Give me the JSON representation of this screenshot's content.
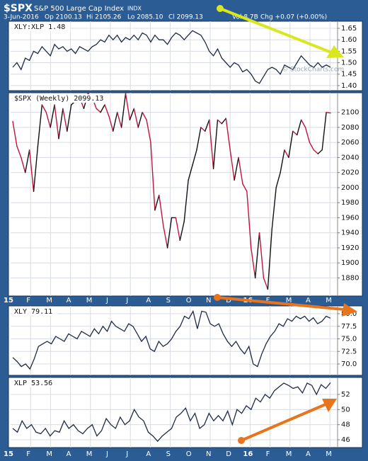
{
  "header": {
    "symbol": "$SPX",
    "name": "S&P 500 Large Cap Index",
    "exchange": "INDX",
    "date": "3-Jun-2016",
    "open": "Op 2100.13",
    "high": "Hi 2105.26",
    "low": "Lo 2085.10",
    "close": "Cl 2099.13",
    "volume": "Vol 8.7B",
    "change": "Chg +0.07 (+0.00%)"
  },
  "watermark": "© StockCharts.com",
  "x_labels": [
    "15",
    "F",
    "M",
    "A",
    "M",
    "J",
    "J",
    "A",
    "S",
    "O",
    "N",
    "D",
    "16",
    "F",
    "M",
    "A",
    "M"
  ],
  "chart_data": [
    {
      "type": "line",
      "title": "XLY:XLP 1.48",
      "color": "#1f2a44",
      "grid": true,
      "ylim": [
        1.378,
        1.681
      ],
      "yticks": [
        {
          "value": 1.4,
          "label": "1.40"
        },
        {
          "value": 1.45,
          "label": "1.45"
        },
        {
          "value": 1.5,
          "label": "1.50"
        },
        {
          "value": 1.55,
          "label": "1.55"
        },
        {
          "value": 1.6,
          "label": "1.60"
        },
        {
          "value": 1.65,
          "label": "1.65"
        }
      ],
      "values": [
        1.48,
        1.5,
        1.47,
        1.52,
        1.51,
        1.55,
        1.54,
        1.57,
        1.55,
        1.53,
        1.58,
        1.56,
        1.57,
        1.55,
        1.56,
        1.54,
        1.57,
        1.56,
        1.55,
        1.57,
        1.58,
        1.6,
        1.59,
        1.62,
        1.6,
        1.62,
        1.59,
        1.61,
        1.6,
        1.62,
        1.6,
        1.63,
        1.62,
        1.59,
        1.62,
        1.6,
        1.6,
        1.58,
        1.61,
        1.63,
        1.62,
        1.6,
        1.62,
        1.64,
        1.63,
        1.62,
        1.59,
        1.55,
        1.53,
        1.56,
        1.52,
        1.5,
        1.48,
        1.5,
        1.49,
        1.46,
        1.47,
        1.45,
        1.42,
        1.41,
        1.44,
        1.47,
        1.48,
        1.47,
        1.45,
        1.49,
        1.48,
        1.47,
        1.5,
        1.53,
        1.51,
        1.49,
        1.48,
        1.5,
        1.48,
        1.49,
        1.48
      ]
    },
    {
      "type": "updown-line",
      "title": "$SPX (Weekly) 2099.13",
      "color": "#111111",
      "down_color": "#c0143c",
      "grid": true,
      "ylim": [
        1856,
        2126
      ],
      "yticks": [
        1880,
        1900,
        1920,
        1940,
        1960,
        1980,
        2000,
        2020,
        2040,
        2060,
        2080,
        2100
      ],
      "values": [
        2088,
        2055,
        2040,
        2020,
        2050,
        1995,
        2055,
        2110,
        2100,
        2080,
        2110,
        2065,
        2105,
        2075,
        2110,
        2115,
        2120,
        2105,
        2125,
        2120,
        2105,
        2100,
        2110,
        2095,
        2075,
        2100,
        2080,
        2125,
        2090,
        2105,
        2080,
        2100,
        2090,
        2060,
        1970,
        1990,
        1950,
        1920,
        1960,
        1960,
        1930,
        1955,
        2010,
        2030,
        2050,
        2080,
        2075,
        2090,
        2025,
        2090,
        2085,
        2092,
        2050,
        2010,
        2040,
        2005,
        1995,
        1920,
        1880,
        1940,
        1880,
        1865,
        1945,
        2000,
        2020,
        2050,
        2040,
        2075,
        2070,
        2090,
        2080,
        2060,
        2050,
        2045,
        2050,
        2100,
        2099.13
      ]
    },
    {
      "type": "line",
      "title": "XLY 79.11",
      "color": "#1f2a44",
      "grid": true,
      "ylim": [
        67.75,
        81.55
      ],
      "yticks": [
        {
          "value": 70,
          "label": "70.0"
        },
        {
          "value": 72.5,
          "label": "72.5"
        },
        {
          "value": 75,
          "label": "75.0"
        },
        {
          "value": 77.5,
          "label": "77.5"
        },
        {
          "value": 80,
          "label": "80.0"
        }
      ],
      "values": [
        71.3,
        70.5,
        69.5,
        70.0,
        69.0,
        71.0,
        73.5,
        74.0,
        74.5,
        74.0,
        75.5,
        75.0,
        74.5,
        76.0,
        75.5,
        75.0,
        76.5,
        76.0,
        75.5,
        77.0,
        76.0,
        77.5,
        76.5,
        78.5,
        77.5,
        77.0,
        76.5,
        78.0,
        77.5,
        76.0,
        74.5,
        75.5,
        73.0,
        72.5,
        74.5,
        73.5,
        74.0,
        75.0,
        76.5,
        77.5,
        79.5,
        79.0,
        80.5,
        77.0,
        80.5,
        80.3,
        78.0,
        77.5,
        78.0,
        76.0,
        74.5,
        73.5,
        74.5,
        73.0,
        72.0,
        73.5,
        70.0,
        69.5,
        72.0,
        74.0,
        75.5,
        76.5,
        78.0,
        77.5,
        79.0,
        78.5,
        79.5,
        79.0,
        79.5,
        78.5,
        79.2,
        78.0,
        78.5,
        79.5,
        79.11
      ]
    },
    {
      "type": "line",
      "title": "XLP 53.56",
      "color": "#1f2a44",
      "grid": true,
      "ylim": [
        44.97,
        54.25
      ],
      "yticks": [
        46,
        48,
        50,
        52
      ],
      "values": [
        47.5,
        47.0,
        48.5,
        47.5,
        48.0,
        47.0,
        46.8,
        47.5,
        46.5,
        47.2,
        47.0,
        48.5,
        47.5,
        48.0,
        47.2,
        46.8,
        47.5,
        48.0,
        46.5,
        47.2,
        48.8,
        48.0,
        47.5,
        49.0,
        48.0,
        48.5,
        50.0,
        49.0,
        48.5,
        47.0,
        46.5,
        45.8,
        46.5,
        47.0,
        47.5,
        49.0,
        49.5,
        50.2,
        48.5,
        49.5,
        47.5,
        48.0,
        49.5,
        48.5,
        49.2,
        48.5,
        49.8,
        48.0,
        50.0,
        49.5,
        50.5,
        50.0,
        51.5,
        51.0,
        52.0,
        51.5,
        52.5,
        53.0,
        53.5,
        53.2,
        52.8,
        53.0,
        52.2,
        53.5,
        53.2,
        52.0,
        53.3,
        52.8,
        53.56
      ]
    }
  ]
}
